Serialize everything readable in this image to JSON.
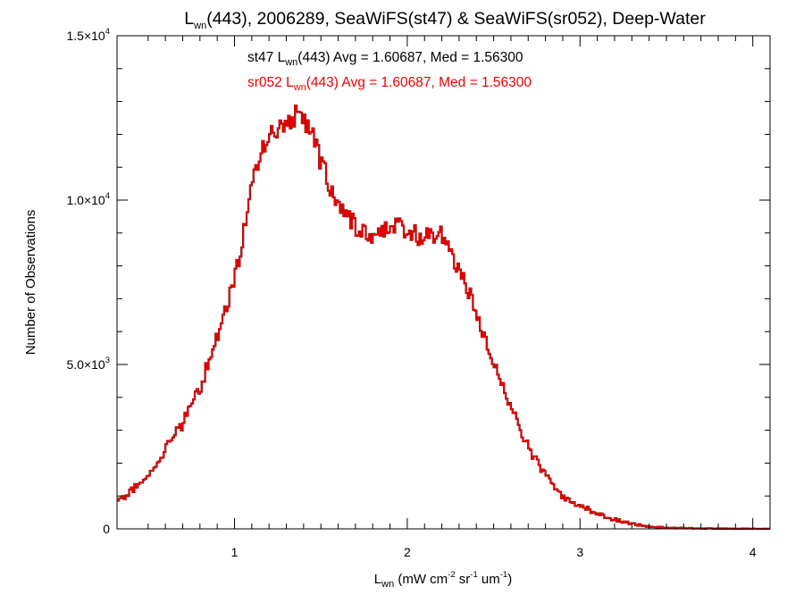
{
  "chart_data": {
    "type": "histogram",
    "title": {
      "lead": "L",
      "sub": "wn",
      "rest": "(443), 2006289, SeaWiFS(st47) & SeaWiFS(sr052), Deep-Water"
    },
    "xlabel": {
      "lead": "L",
      "sub": "wn",
      "p1": " (mW cm",
      "s1": "-2",
      "p2": " sr",
      "s2": "-1",
      "p3": " um",
      "s3": "-1",
      "p4": ")"
    },
    "ylabel": "Number of Observations",
    "xlim": [
      0.32,
      4.1
    ],
    "ylim": [
      0,
      15000
    ],
    "x_ticks": [
      {
        "value": 1,
        "label": "1"
      },
      {
        "value": 2,
        "label": "2"
      },
      {
        "value": 3,
        "label": "3"
      },
      {
        "value": 4,
        "label": "4"
      }
    ],
    "y_ticks": [
      {
        "value": 0,
        "mant": "0",
        "exp": ""
      },
      {
        "value": 5000,
        "mant": "5.0×10",
        "exp": "3"
      },
      {
        "value": 10000,
        "mant": "1.0×10",
        "exp": "4"
      },
      {
        "value": 15000,
        "mant": "1.5×10",
        "exp": "4"
      }
    ],
    "annotations": [
      {
        "color": "#000000",
        "lead": "st47 L",
        "sub": "wn",
        "rest": "(443) Avg = 1.60687, Med = 1.56300"
      },
      {
        "color": "#ee0000",
        "lead": "sr052 L",
        "sub": "wn",
        "rest": "(443) Avg = 1.60687, Med = 1.56300"
      }
    ],
    "series": [
      {
        "color": "#000000",
        "ref": "st47"
      },
      {
        "color": "#ee0000",
        "ref": "sr052"
      }
    ],
    "bin_width": 0.01,
    "x_start": 0.32,
    "keypoints": [
      [
        0.32,
        800
      ],
      [
        0.4,
        1150
      ],
      [
        0.5,
        1550
      ],
      [
        0.6,
        2400
      ],
      [
        0.7,
        3200
      ],
      [
        0.8,
        4300
      ],
      [
        0.9,
        5800
      ],
      [
        1.0,
        7500
      ],
      [
        1.05,
        8900
      ],
      [
        1.1,
        10300
      ],
      [
        1.15,
        11500
      ],
      [
        1.2,
        12100
      ],
      [
        1.3,
        12400
      ],
      [
        1.35,
        12600
      ],
      [
        1.4,
        12400
      ],
      [
        1.45,
        12050
      ],
      [
        1.5,
        11200
      ],
      [
        1.55,
        10500
      ],
      [
        1.6,
        10000
      ],
      [
        1.65,
        9600
      ],
      [
        1.7,
        9200
      ],
      [
        1.75,
        9000
      ],
      [
        1.8,
        9000
      ],
      [
        1.85,
        9100
      ],
      [
        1.9,
        9200
      ],
      [
        1.95,
        9200
      ],
      [
        2.0,
        9100
      ],
      [
        2.05,
        8950
      ],
      [
        2.1,
        8800
      ],
      [
        2.15,
        8950
      ],
      [
        2.2,
        8900
      ],
      [
        2.25,
        8500
      ],
      [
        2.3,
        7900
      ],
      [
        2.35,
        7300
      ],
      [
        2.4,
        6500
      ],
      [
        2.45,
        5800
      ],
      [
        2.5,
        5000
      ],
      [
        2.55,
        4400
      ],
      [
        2.6,
        3700
      ],
      [
        2.7,
        2500
      ],
      [
        2.8,
        1600
      ],
      [
        2.9,
        1000
      ],
      [
        3.0,
        700
      ],
      [
        3.1,
        480
      ],
      [
        3.2,
        280
      ],
      [
        3.3,
        150
      ],
      [
        3.4,
        75
      ],
      [
        3.5,
        35
      ],
      [
        3.7,
        10
      ],
      [
        4.1,
        0
      ]
    ]
  }
}
